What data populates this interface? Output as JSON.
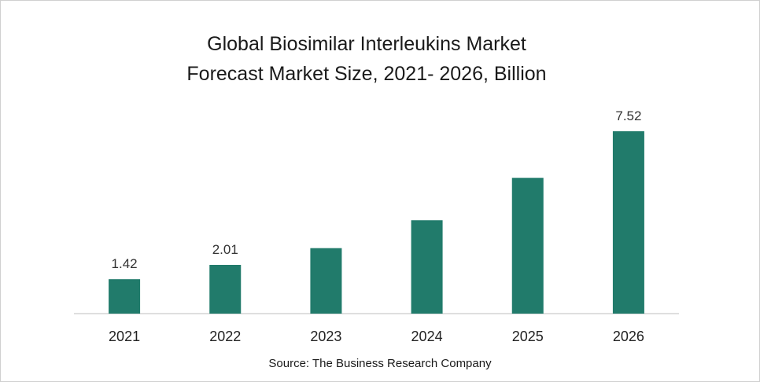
{
  "chart_data": {
    "type": "bar",
    "title_line1": "Global Biosimilar Interleukins Market",
    "title_line2": "Forecast Market Size, 2021- 2026, Billion",
    "categories": [
      "2021",
      "2022",
      "2023",
      "2024",
      "2025",
      "2026"
    ],
    "values": [
      1.42,
      2.01,
      2.7,
      3.85,
      5.6,
      7.52
    ],
    "data_labels": [
      "1.42",
      "2.01",
      "",
      "",
      "",
      "7.52"
    ],
    "ylim": [
      0,
      7.52
    ],
    "grid": false,
    "bar_color": "#217b6b",
    "axis_color": "#bfbfbf"
  },
  "source": "Source: The Business Research Company"
}
